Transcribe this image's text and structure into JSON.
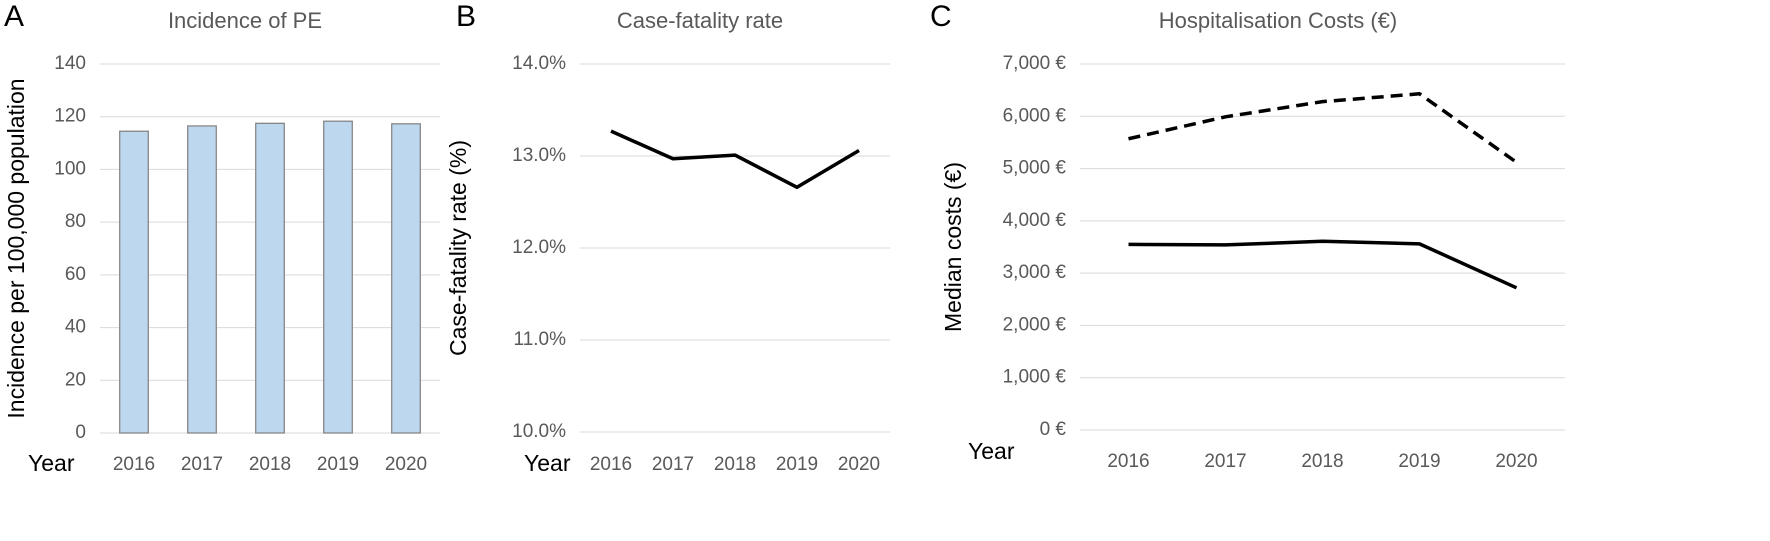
{
  "chart_data": [
    {
      "type": "bar",
      "panel": "A",
      "title": "Incidence of PE",
      "xlabel": "Year",
      "ylabel": "Incidence per 100,000 population",
      "categories": [
        "2016",
        "2017",
        "2018",
        "2019",
        "2020"
      ],
      "values": [
        114.5,
        116.5,
        117.5,
        118.3,
        117.3
      ],
      "color": "#bdd7ee",
      "edgecolor": "#7f7f7f",
      "ylim": [
        0,
        140
      ],
      "yticks": [
        0,
        20,
        40,
        60,
        80,
        100,
        120,
        140
      ],
      "grid": true
    },
    {
      "type": "line",
      "panel": "B",
      "title": "Case-fatality rate",
      "xlabel": "Year",
      "ylabel": "Case-fatality rate (%)",
      "categories": [
        "2016",
        "2017",
        "2018",
        "2019",
        "2020"
      ],
      "values": [
        13.27,
        12.97,
        13.01,
        12.66,
        13.06
      ],
      "color": "#000000",
      "ylim": [
        10,
        14
      ],
      "yticks": [
        {
          "value": 10,
          "label": "10.0%"
        },
        {
          "value": 11,
          "label": "11.0%"
        },
        {
          "value": 12,
          "label": "12.0%"
        },
        {
          "value": 13,
          "label": "13.0%"
        },
        {
          "value": 14,
          "label": "14.0%"
        }
      ],
      "grid": true
    },
    {
      "type": "line",
      "panel": "C",
      "title": "Hospitalisation Costs (€)",
      "xlabel": "Year",
      "ylabel": "Median costs (€)",
      "categories": [
        "2016",
        "2017",
        "2018",
        "2019",
        "2020"
      ],
      "series": [
        {
          "color": "#000000",
          "dash": true,
          "values": [
            5570,
            5990,
            6280,
            6430,
            5120
          ]
        },
        {
          "color": "#000000",
          "dash": false,
          "values": [
            3550,
            3540,
            3610,
            3560,
            2720
          ]
        }
      ],
      "ylim": [
        0,
        7000
      ],
      "yticks": [
        {
          "value": 0,
          "label": "0 €"
        },
        {
          "value": 1000,
          "label": "1,000 €"
        },
        {
          "value": 2000,
          "label": "2,000 €"
        },
        {
          "value": 3000,
          "label": "3,000 €"
        },
        {
          "value": 4000,
          "label": "4,000 €"
        },
        {
          "value": 5000,
          "label": "5,000 €"
        },
        {
          "value": 6000,
          "label": "6,000 €"
        },
        {
          "value": 7000,
          "label": "7,000 €"
        }
      ],
      "grid": true
    }
  ]
}
